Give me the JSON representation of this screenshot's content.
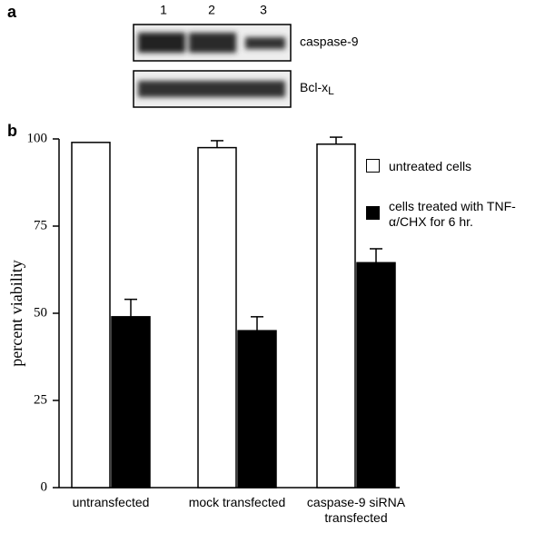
{
  "panel_a": {
    "label": "a",
    "lanes": [
      "1",
      "2",
      "3"
    ],
    "rows": [
      {
        "label": "caspase-9"
      },
      {
        "label": "Bcl-x",
        "subscript": "L"
      }
    ]
  },
  "chart_data": {
    "type": "bar",
    "label": "b",
    "y_label": "percent viability",
    "categories": [
      "untransfected",
      "mock transfected",
      "caspase-9 siRNA transfected"
    ],
    "series": [
      {
        "name": "untreated cells",
        "color": "#ffffff",
        "values": [
          99,
          97.5,
          98.5
        ],
        "errors": [
          null,
          2,
          2
        ]
      },
      {
        "name": "cells treated with TNF-α/CHX for 6 hr.",
        "color": "#000000",
        "values": [
          49,
          45,
          64.5
        ],
        "errors": [
          5,
          4,
          4
        ]
      }
    ],
    "ylim": [
      0,
      100
    ],
    "yticks": [
      0,
      25,
      50,
      75,
      100
    ],
    "grid": false
  }
}
